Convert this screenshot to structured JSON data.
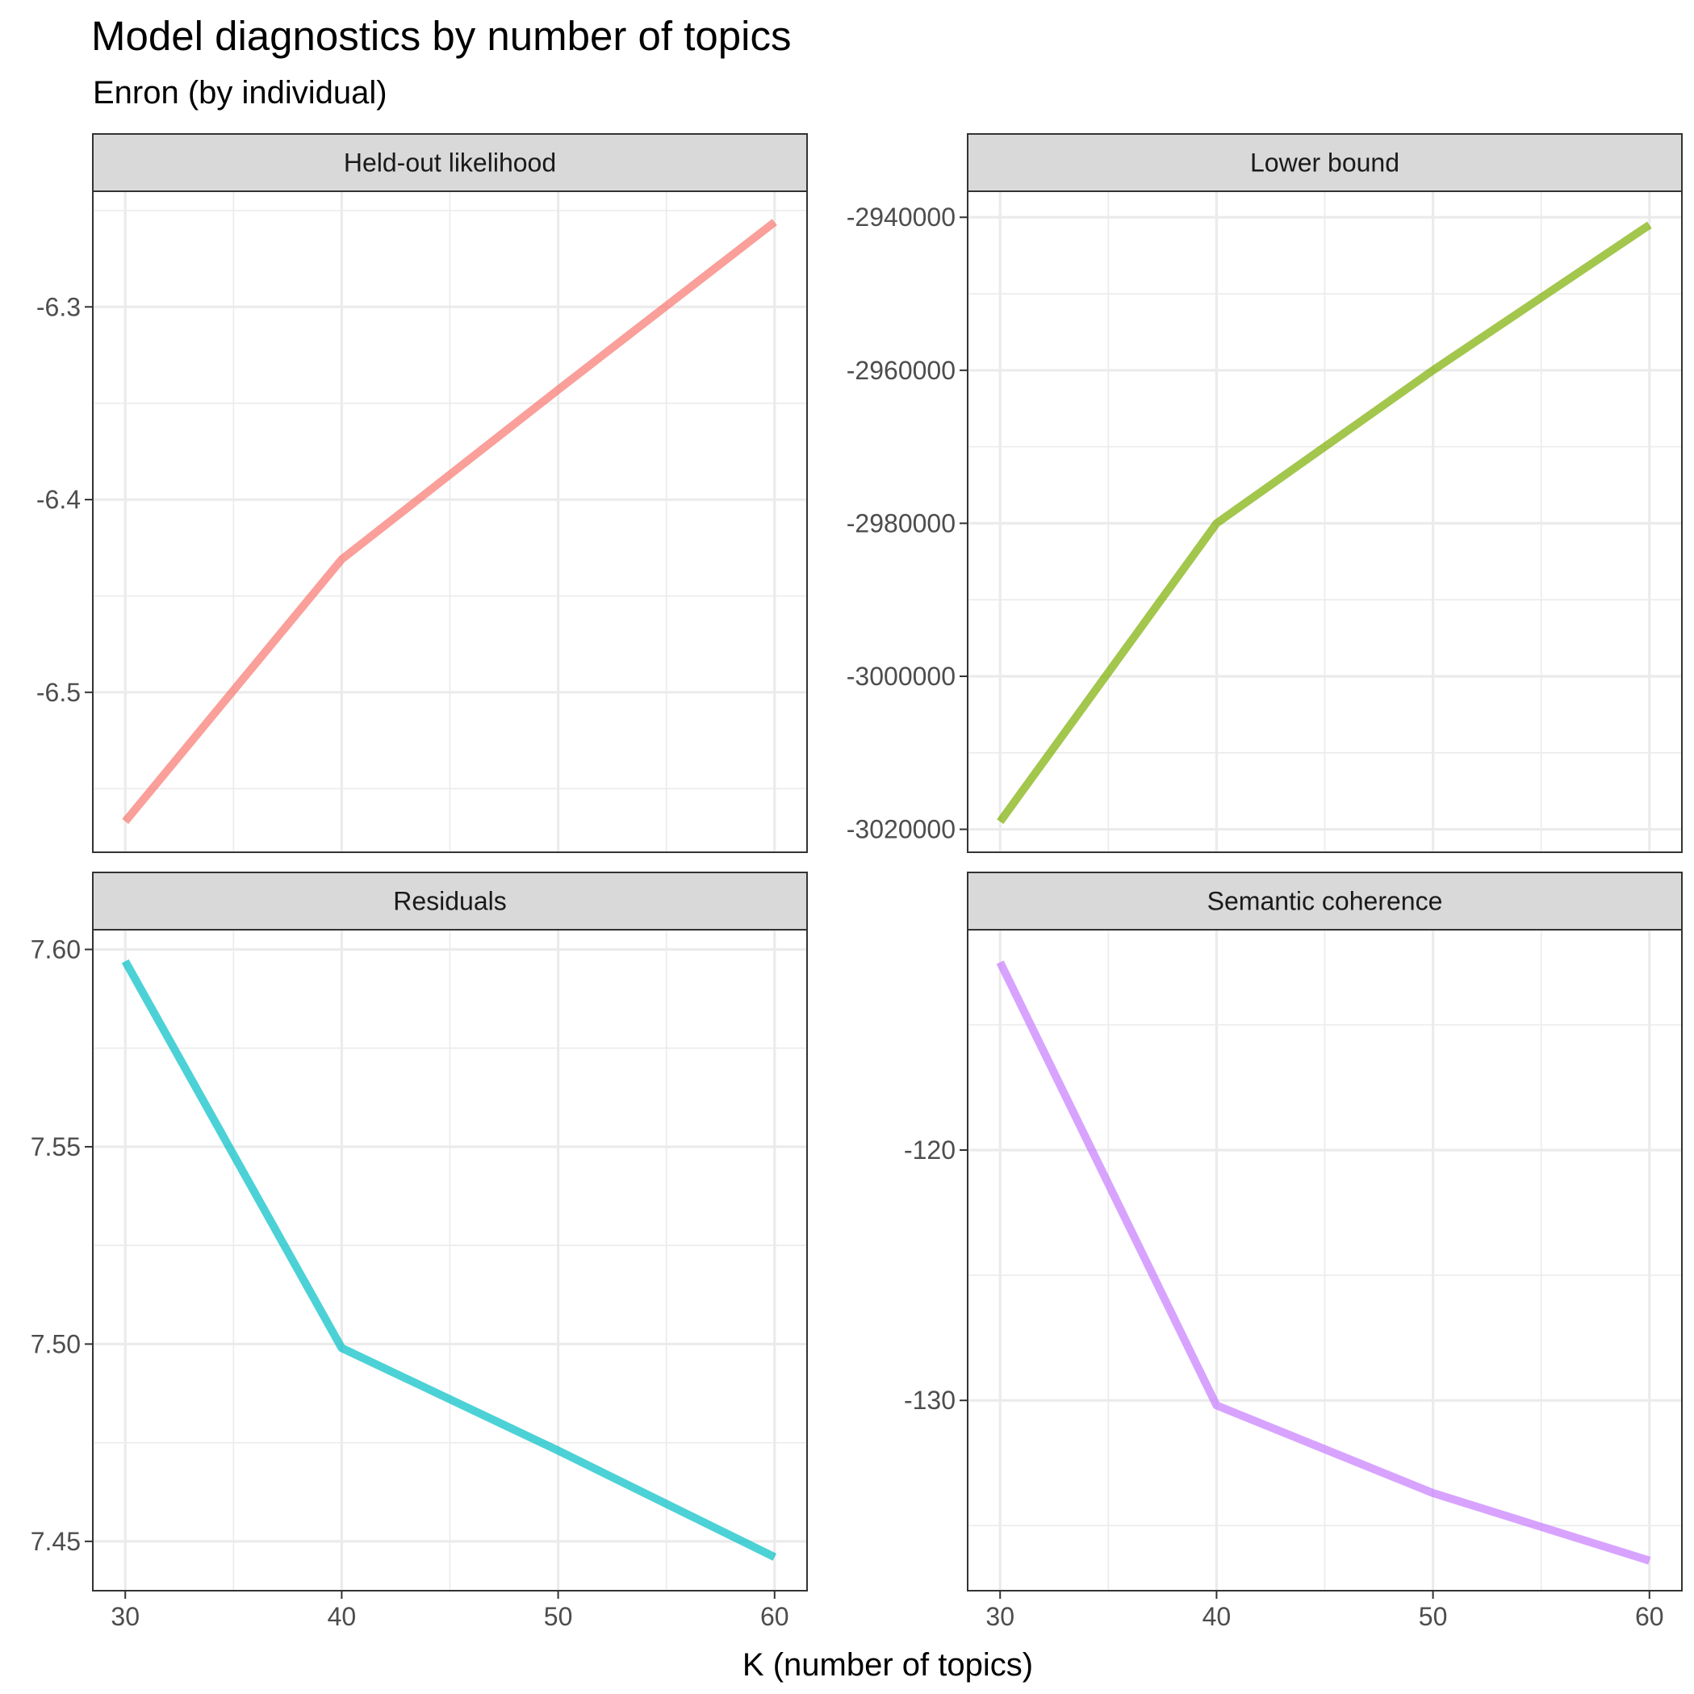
{
  "title": "Model diagnostics by number of topics",
  "subtitle": "Enron (by individual)",
  "xlabel": "K (number of topics)",
  "chart_data": {
    "type": "line",
    "layout": "facet-grid-2x2",
    "grid": true,
    "x": [
      30,
      40,
      50,
      60
    ],
    "x_ticks": [
      30,
      40,
      50,
      60
    ],
    "xlim": [
      28.5,
      61.5
    ],
    "panels": [
      {
        "name": "Held-out likelihood",
        "color": "#F8766D",
        "values": [
          -6.567,
          -6.431,
          -6.343,
          -6.256
        ],
        "y_ticks": [
          -6.5,
          -6.4,
          -6.3
        ],
        "y_tick_labels": [
          "-6.5",
          "-6.4",
          "-6.3"
        ],
        "ylim": [
          -6.583,
          -6.24
        ]
      },
      {
        "name": "Lower bound",
        "color": "#7CAE00",
        "values": [
          -3019000,
          -2980000,
          -2960000,
          -2941000
        ],
        "y_ticks": [
          -3020000,
          -3000000,
          -2980000,
          -2960000,
          -2940000
        ],
        "y_tick_labels": [
          "-3020000",
          "-3000000",
          "-2980000",
          "-2960000",
          "-2940000"
        ],
        "ylim": [
          -3023000,
          -2936600
        ]
      },
      {
        "name": "Residuals",
        "color": "#00BFC4",
        "values": [
          7.597,
          7.499,
          7.473,
          7.446
        ],
        "y_ticks": [
          7.45,
          7.5,
          7.55,
          7.6
        ],
        "y_tick_labels": [
          "7.45",
          "7.50",
          "7.55",
          "7.60"
        ],
        "ylim": [
          7.4375,
          7.605
        ]
      },
      {
        "name": "Semantic coherence",
        "color": "#C77CFF",
        "values": [
          -112.5,
          -130.2,
          -133.7,
          -136.4
        ],
        "y_ticks": [
          -130,
          -120
        ],
        "y_tick_labels": [
          "-130",
          "-120"
        ],
        "ylim": [
          -137.6,
          -111.2
        ]
      }
    ]
  }
}
